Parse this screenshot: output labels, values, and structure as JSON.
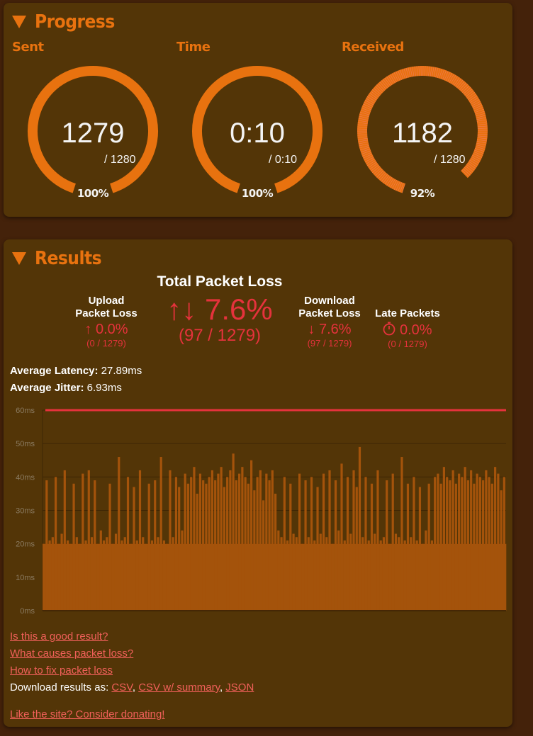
{
  "progress": {
    "title": "Progress",
    "gauges": [
      {
        "label": "Sent",
        "value": "1279",
        "max": "/ 1280",
        "percent": "100%",
        "fraction": 1.0
      },
      {
        "label": "Time",
        "value": "0:10",
        "max": "/ 0:10",
        "percent": "100%",
        "fraction": 1.0
      },
      {
        "label": "Received",
        "value": "1182",
        "max": "/ 1280",
        "percent": "92%",
        "fraction": 0.92
      }
    ]
  },
  "results": {
    "title": "Results",
    "total": {
      "heading": "Total Packet Loss",
      "icon": "up-down-arrows-icon",
      "arrows": "↑↓",
      "value": "7.6%",
      "count": "(97 / 1279)"
    },
    "upload": {
      "heading1": "Upload",
      "heading2": "Packet Loss",
      "icon": "up-arrow-icon",
      "arrow": "↑",
      "value": "0.0%",
      "count": "(0 / 1279)"
    },
    "download": {
      "heading1": "Download",
      "heading2": "Packet Loss",
      "icon": "down-arrow-icon",
      "arrow": "↓",
      "value": "7.6%",
      "count": "(97 / 1279)"
    },
    "late": {
      "heading": "Late Packets",
      "icon": "stopwatch-icon",
      "value": "0.0%",
      "count": "(0 / 1279)"
    },
    "latency": {
      "label": "Average Latency:",
      "value": "27.89ms"
    },
    "jitter": {
      "label": "Average Jitter:",
      "value": "6.93ms"
    },
    "links": [
      "Is this a good result?",
      "What causes packet loss?",
      "How to fix packet loss"
    ],
    "download_label": "Download results as:",
    "download_links": [
      "CSV",
      "CSV w/ summary",
      "JSON"
    ],
    "donate": "Like the site? Consider donating!"
  },
  "colors": {
    "accent": "#e8720f",
    "loss": "#e5323c",
    "bar": "#a4530b",
    "panel": "#533507",
    "background": "#44220a"
  },
  "chart_data": {
    "type": "bar",
    "ylabel": "",
    "ylim": [
      0,
      60
    ],
    "yticks": [
      "0ms",
      "10ms",
      "20ms",
      "30ms",
      "40ms",
      "50ms",
      "60ms"
    ],
    "threshold": {
      "value": 60,
      "color": "#e5323c"
    },
    "grid": true,
    "values": [
      20,
      39,
      21,
      22,
      40,
      20,
      23,
      42,
      21,
      20,
      38,
      22,
      20,
      41,
      21,
      42,
      22,
      39,
      20,
      24,
      21,
      22,
      38,
      20,
      23,
      46,
      21,
      22,
      40,
      20,
      37,
      21,
      42,
      22,
      20,
      38,
      21,
      39,
      22,
      46,
      21,
      20,
      42,
      22,
      40,
      37,
      24,
      41,
      38,
      40,
      43,
      35,
      41,
      39,
      38,
      40,
      42,
      39,
      41,
      43,
      37,
      40,
      42,
      47,
      39,
      41,
      43,
      40,
      38,
      45,
      36,
      40,
      42,
      33,
      41,
      39,
      42,
      35,
      24,
      22,
      40,
      21,
      38,
      23,
      22,
      41,
      20,
      39,
      22,
      40,
      21,
      37,
      23,
      41,
      22,
      42,
      20,
      39,
      24,
      44,
      21,
      40,
      23,
      42,
      37,
      49,
      22,
      40,
      21,
      38,
      23,
      42,
      21,
      22,
      39,
      20,
      41,
      23,
      22,
      46,
      21,
      38,
      22,
      40,
      21,
      37,
      20,
      24,
      38,
      21,
      40,
      41,
      38,
      43,
      40,
      39,
      42,
      38,
      41,
      40,
      43,
      39,
      42,
      38,
      41,
      40,
      39,
      42,
      40,
      38,
      43,
      41,
      36,
      40
    ]
  }
}
